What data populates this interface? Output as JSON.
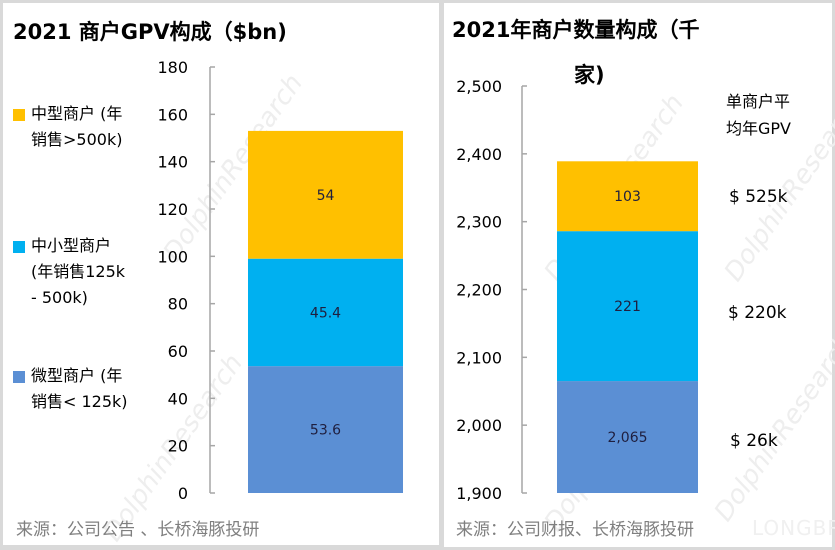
{
  "chart_data": [
    {
      "type": "bar",
      "stacked": true,
      "title": "2021 商户GPV构成（$bn)",
      "categories": [
        "2021"
      ],
      "series": [
        {
          "name": "微型商户 (年销售< 125k)",
          "values": [
            53.6
          ],
          "label": "53.6",
          "color": "#5b8fd4"
        },
        {
          "name": "中小型商户 (年销售125k - 500k)",
          "values": [
            45.4
          ],
          "label": "45.4",
          "color": "#00b0f0"
        },
        {
          "name": "中型商户 (年销售>500k)",
          "values": [
            54
          ],
          "label": "54",
          "color": "#ffc000"
        }
      ],
      "ylim": [
        0,
        180
      ],
      "yticks": [
        0,
        20,
        40,
        60,
        80,
        100,
        120,
        140,
        160,
        180
      ],
      "ytick_labels": [
        "0",
        "20",
        "40",
        "60",
        "80",
        "100",
        "120",
        "140",
        "160",
        "180"
      ],
      "legend_placement": "left",
      "legend_order": [
        "中型商户 (年\n销售>500k)",
        "中小型商户\n(年销售125k\n- 500k)",
        "微型商户 (年\n销售< 125k)"
      ],
      "xlabel": "",
      "ylabel": "",
      "grid": false,
      "source": "来源：公司公告 、长桥海豚投研"
    },
    {
      "type": "bar",
      "stacked": true,
      "title": "2021年商户数量构成（千家)",
      "categories": [
        "2021"
      ],
      "series": [
        {
          "name": "微型商户",
          "values": [
            2065
          ],
          "label": "2,065",
          "color": "#5b8fd4",
          "avg_gpv": "$ 26k"
        },
        {
          "name": "中小型商户",
          "values": [
            221
          ],
          "label": "221",
          "color": "#00b0f0",
          "avg_gpv": "$ 220k"
        },
        {
          "name": "中型商户",
          "values": [
            103
          ],
          "label": "103",
          "color": "#ffc000",
          "avg_gpv": "$ 525k"
        }
      ],
      "ylim": [
        1900,
        2500
      ],
      "yticks": [
        1900,
        2000,
        2100,
        2200,
        2300,
        2400,
        2500
      ],
      "ytick_labels": [
        "1,900",
        "2,000",
        "2,100",
        "2,200",
        "2,300",
        "2,400",
        "2,500"
      ],
      "annotation_header": "单商户平\n均年GPV",
      "xlabel": "",
      "ylabel": "",
      "grid": false,
      "source": "来源：公司财报、长桥海豚投研"
    }
  ],
  "left": {
    "title": "2021 商户GPV构成（$bn)",
    "source": "来源：公司公告 、长桥海豚投研",
    "legend": [
      {
        "label": "中型商户 (年\n销售>500k)",
        "color": "#ffc000"
      },
      {
        "label": "中小型商户\n(年销售125k\n- 500k)",
        "color": "#00b0f0"
      },
      {
        "label": "微型商户 (年\n销售< 125k)",
        "color": "#5b8fd4"
      }
    ]
  },
  "right": {
    "title_line1": "2021年商户数量构成（千",
    "title_line2": "家)",
    "gpv_header": "单商户平\n均年GPV",
    "gpv_values": [
      "$ 525k",
      "$ 220k",
      "$ 26k"
    ],
    "source": "来源：公司财报、长桥海豚投研"
  },
  "watermark": {
    "text1": "LONGBRIDGE",
    "text2": "DolphinResearch"
  }
}
